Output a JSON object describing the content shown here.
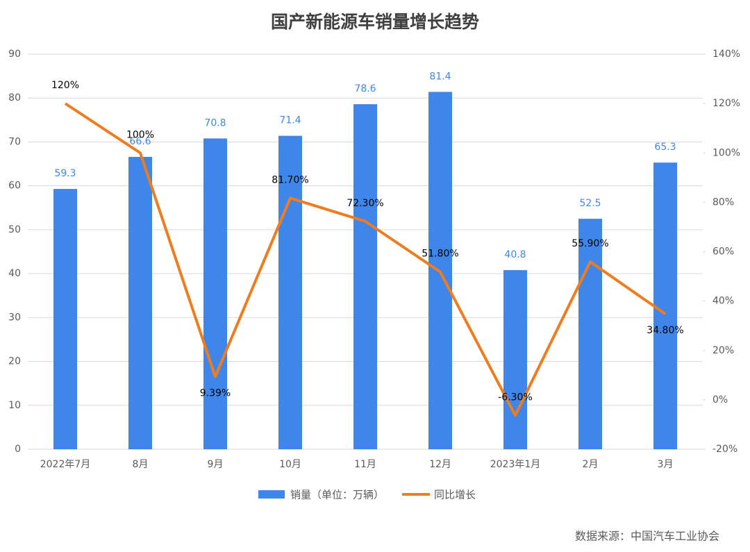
{
  "chart_data": {
    "type": "bar",
    "title": "国产新能源车销量增长趋势",
    "categories": [
      "2022年7月",
      "8月",
      "9月",
      "10月",
      "11月",
      "12月",
      "2023年1月",
      "2月",
      "3月"
    ],
    "series": [
      {
        "name": "销量（单位：万辆）",
        "type": "bar",
        "color": "#3f86eb",
        "values": [
          59.3,
          66.6,
          70.8,
          71.4,
          78.6,
          81.4,
          40.8,
          52.5,
          65.3
        ]
      },
      {
        "name": "同比增长",
        "type": "line",
        "axis": "y2",
        "color": "#f07c1e",
        "values": [
          120,
          100,
          9.39,
          81.7,
          72.3,
          51.8,
          -6.3,
          55.9,
          34.8
        ],
        "value_labels": [
          "120%",
          "100%",
          "9.39%",
          "81.70%",
          "72.30%",
          "51.80%",
          "-6.30%",
          "55.90%",
          "34.80%"
        ]
      }
    ],
    "ylim": [
      0,
      90
    ],
    "yticks": [
      0,
      10,
      20,
      30,
      40,
      50,
      60,
      70,
      80,
      90
    ],
    "y2lim": [
      -20,
      140
    ],
    "y2ticks": [
      {
        "value": -20,
        "label": "-20%"
      },
      {
        "value": 0,
        "label": "0%"
      },
      {
        "value": 20,
        "label": "20%"
      },
      {
        "value": 40,
        "label": "40%"
      },
      {
        "value": 60,
        "label": "60%"
      },
      {
        "value": 80,
        "label": "80%"
      },
      {
        "value": 100,
        "label": "100%"
      },
      {
        "value": 120,
        "label": "120%"
      },
      {
        "value": 140,
        "label": "140%"
      }
    ],
    "grid": true,
    "legend": "bottom",
    "source": "数据来源：中国汽车工业协会"
  }
}
